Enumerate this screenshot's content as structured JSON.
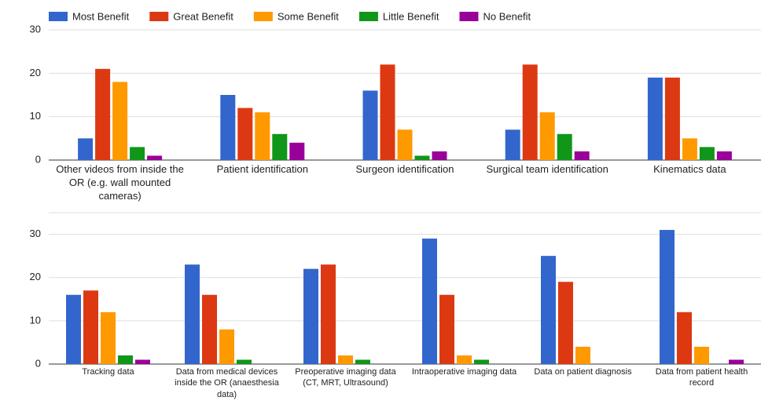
{
  "chart_data": [
    {
      "type": "bar",
      "categories": [
        "Other videos from inside the OR (e.g. wall mounted cameras)",
        "Patient identification",
        "Surgeon identification",
        "Surgical team identification",
        "Kinematics data"
      ],
      "series": [
        {
          "name": "Most Benefit",
          "color": "#3366cc",
          "values": [
            5,
            15,
            16,
            7,
            19
          ]
        },
        {
          "name": "Great Benefit",
          "color": "#dc3912",
          "values": [
            21,
            12,
            22,
            22,
            19
          ]
        },
        {
          "name": "Some Benefit",
          "color": "#ff9900",
          "values": [
            18,
            11,
            7,
            11,
            5
          ]
        },
        {
          "name": "Little Benefit",
          "color": "#109618",
          "values": [
            3,
            6,
            1,
            6,
            3
          ]
        },
        {
          "name": "No Benefit",
          "color": "#990099",
          "values": [
            1,
            4,
            2,
            2,
            2
          ]
        }
      ],
      "ylim": [
        0,
        30
      ],
      "yticks": [
        0,
        10,
        20,
        30
      ],
      "grid": true
    },
    {
      "type": "bar",
      "categories": [
        "Tracking data",
        "Data from medical devices inside the OR (anaesthesia data)",
        "Preoperative imaging data (CT, MRT, Ultrasound)",
        "Intraoperative imaging data",
        "Data on patient diagnosis",
        "Data from patient health record"
      ],
      "series": [
        {
          "values": [
            16,
            23,
            22,
            29,
            25,
            31
          ]
        },
        {
          "values": [
            17,
            16,
            23,
            16,
            19,
            12
          ]
        },
        {
          "values": [
            12,
            8,
            2,
            2,
            4,
            4
          ]
        },
        {
          "values": [
            2,
            1,
            1,
            1,
            0,
            0
          ]
        },
        {
          "values": [
            1,
            0,
            0,
            0,
            0,
            1
          ]
        }
      ],
      "ylim": [
        0,
        35
      ],
      "yticks": [
        0,
        10,
        20,
        30
      ],
      "grid": true
    }
  ]
}
